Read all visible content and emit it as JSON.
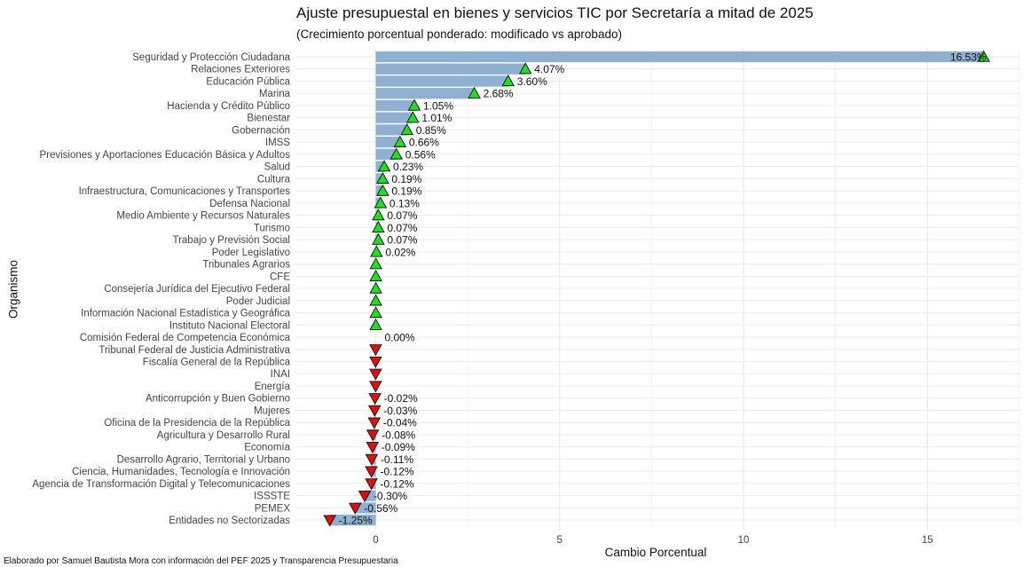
{
  "chart_data": {
    "type": "bar",
    "title": "Ajuste presupuestal en bienes y servicios TIC por Secretaría a mitad de 2025",
    "subtitle": "(Crecimiento porcentual ponderado: modificado vs aprobado)",
    "xlabel": "Cambio Porcentual",
    "ylabel": "Organismo",
    "caption": "Elaborado por Samuel Bautista Mora con información del PEF 2025 y Transparencia Presupuestaria",
    "xlim": [
      -1.6,
      17.1
    ],
    "xticks": [
      "0",
      "5",
      "10",
      "15"
    ],
    "xtick_values": [
      0,
      5,
      10,
      15
    ],
    "orientation": "horizontal",
    "grid": true,
    "bar_color": "#8fb0d1",
    "up_color": "#22dd22",
    "down_color": "#dd1111",
    "categories": [
      "Seguridad y Protección Ciudadana",
      "Relaciones Exteriores",
      "Educación Pública",
      "Marina",
      "Hacienda y Crédito Público",
      "Bienestar",
      "Gobernación",
      "IMSS",
      "Previsiones y Aportaciones Educación Básica y Adultos",
      "Salud",
      "Cultura",
      "Infraestructura, Comunicaciones y Transportes",
      "Defensa Nacional",
      "Medio Ambiente y Recursos Naturales",
      "Turismo",
      "Trabajo y Previsión Social",
      "Poder Legislativo",
      "Tribunales Agrarios",
      "CFE",
      "Consejería Jurídica del Ejecutivo Federal",
      "Poder Judicial",
      "Información Nacional Estadística y Geográfica",
      "Instituto Nacional Electoral",
      "Comisión Federal de Competencia Económica",
      "Tribunal Federal de Justicia Administrativa",
      "Fiscalía General de la República",
      "INAI",
      "Energía",
      "Anticorrupción y Buen Gobierno",
      "Mujeres",
      "Oficina de la Presidencia de la República",
      "Agricultura y Desarrollo Rural",
      "Economía",
      "Desarrollo Agrario, Territorial y Urbano",
      "Ciencia, Humanidades, Tecnología e Innovación",
      "Agencia de Transformación Digital y Telecomunicaciones",
      "ISSSTE",
      "PEMEX",
      "Entidades no Sectorizadas"
    ],
    "values": [
      16.53,
      4.07,
      3.6,
      2.68,
      1.05,
      1.01,
      0.85,
      0.66,
      0.56,
      0.23,
      0.19,
      0.19,
      0.13,
      0.07,
      0.07,
      0.07,
      0.02,
      0.004,
      0.003,
      0.003,
      0.002,
      0.002,
      0.001,
      0.0,
      -0.002,
      -0.003,
      -0.003,
      -0.004,
      -0.02,
      -0.03,
      -0.04,
      -0.08,
      -0.09,
      -0.11,
      -0.12,
      -0.12,
      -0.3,
      -0.56,
      -1.25
    ],
    "labels": [
      "16.53%",
      "4.07%",
      "3.60%",
      "2.68%",
      "1.05%",
      "1.01%",
      "0.85%",
      "0.66%",
      "0.56%",
      "0.23%",
      "0.19%",
      "0.19%",
      "0.13%",
      "0.07%",
      "0.07%",
      "0.07%",
      "0.02%",
      "",
      "",
      "",
      "",
      "",
      "",
      "0.00%",
      "",
      "",
      "",
      "",
      "-0.02%",
      "-0.03%",
      "-0.04%",
      "-0.08%",
      "-0.09%",
      "-0.11%",
      "-0.12%",
      "-0.12%",
      "-0.30%",
      "-0.56%",
      "-1.25%"
    ]
  }
}
